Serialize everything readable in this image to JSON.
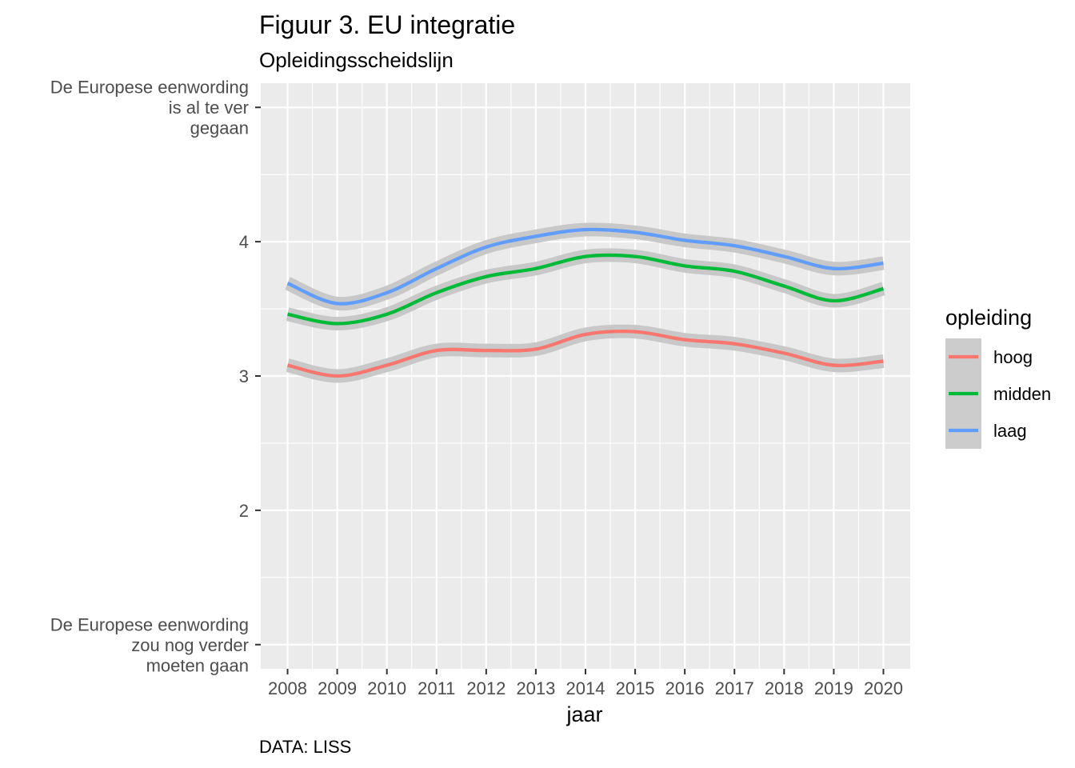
{
  "chart_data": {
    "type": "line",
    "title": "Figuur 3. EU integratie",
    "subtitle": "Opleidingsscheidslijn",
    "caption": "DATA: LISS",
    "xlabel": "jaar",
    "ylabel": "",
    "x": [
      2008,
      2009,
      2010,
      2011,
      2012,
      2013,
      2014,
      2015,
      2016,
      2017,
      2018,
      2019,
      2020
    ],
    "xlim": [
      2008,
      2020
    ],
    "ylim": [
      1,
      5
    ],
    "y_ticks": [
      {
        "value": 5,
        "lines": [
          "De Europese eenwording",
          "is al te ver",
          "gegaan"
        ]
      },
      {
        "value": 4,
        "lines": [
          "4"
        ]
      },
      {
        "value": 3,
        "lines": [
          "3"
        ]
      },
      {
        "value": 2,
        "lines": [
          "2"
        ]
      },
      {
        "value": 1,
        "lines": [
          "De Europese eenwording",
          "zou nog verder",
          "moeten gaan"
        ]
      }
    ],
    "grid": true,
    "legend": {
      "title": "opleiding",
      "position": "right"
    },
    "series": [
      {
        "name": "hoog",
        "color": "#F8766D",
        "values": [
          3.08,
          3.0,
          3.08,
          3.19,
          3.19,
          3.2,
          3.31,
          3.33,
          3.27,
          3.24,
          3.17,
          3.08,
          3.11
        ]
      },
      {
        "name": "midden",
        "color": "#00BA38",
        "values": [
          3.46,
          3.39,
          3.46,
          3.62,
          3.74,
          3.8,
          3.89,
          3.89,
          3.82,
          3.78,
          3.67,
          3.56,
          3.65
        ]
      },
      {
        "name": "laag",
        "color": "#619CFF",
        "values": [
          3.69,
          3.54,
          3.62,
          3.8,
          3.96,
          4.04,
          4.09,
          4.07,
          4.01,
          3.97,
          3.89,
          3.8,
          3.84
        ]
      }
    ]
  }
}
